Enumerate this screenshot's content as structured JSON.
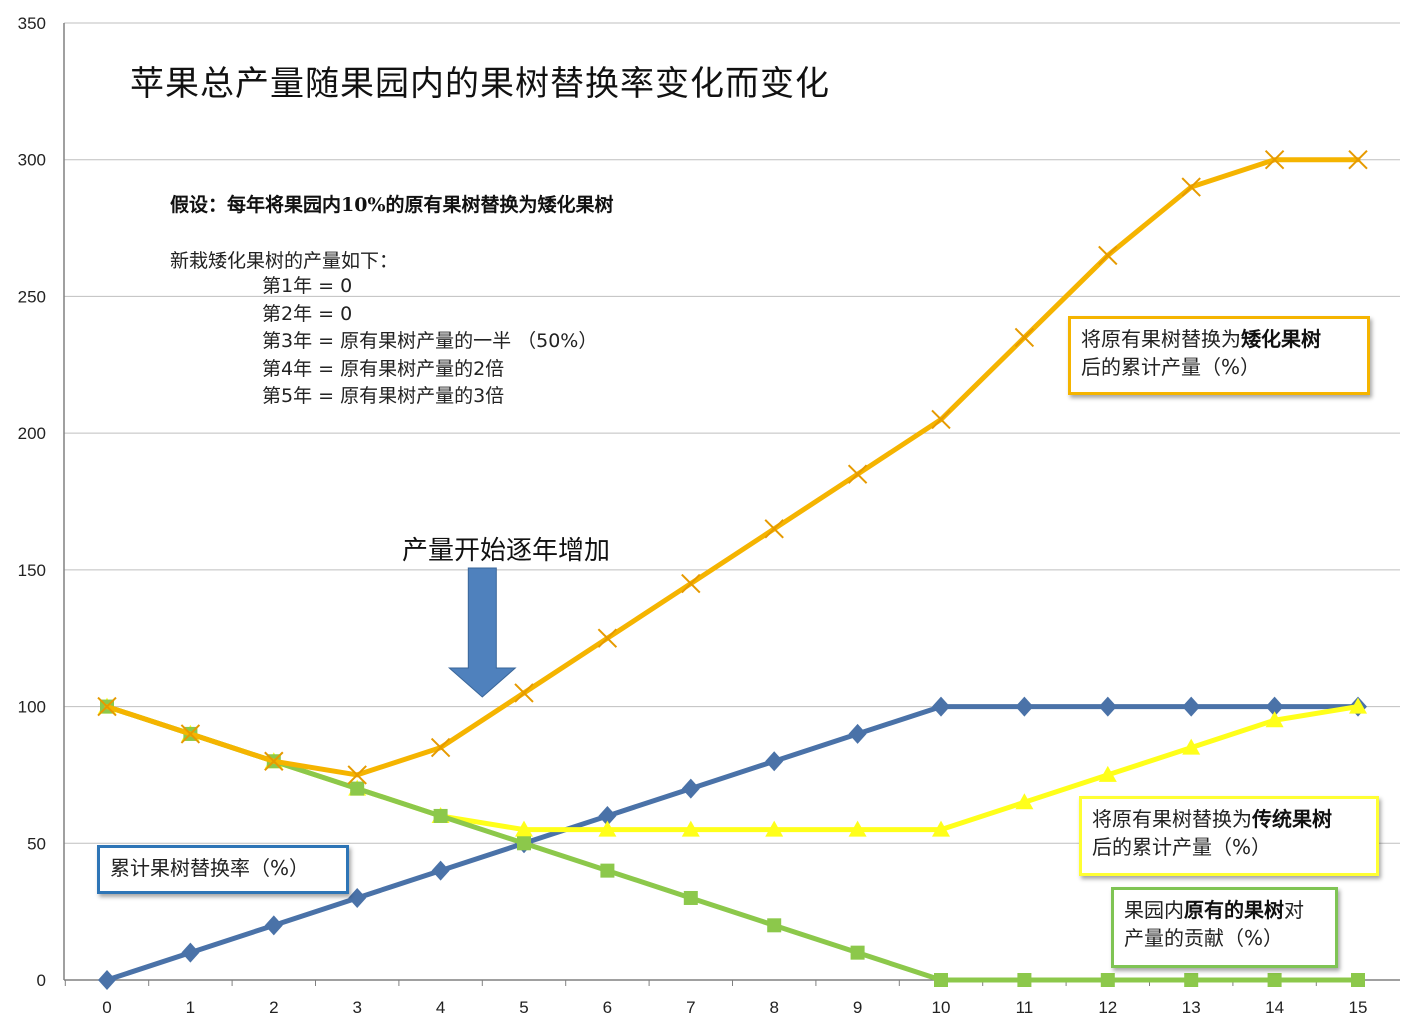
{
  "chart_data": {
    "type": "line",
    "title": "苹果总产量随果园内的果树替换率变化而变化",
    "x": [
      0,
      1,
      2,
      3,
      4,
      5,
      6,
      7,
      8,
      9,
      10,
      11,
      12,
      13,
      14,
      15
    ],
    "ylim": [
      0,
      350
    ],
    "xticks": [
      "0",
      "1",
      "2",
      "3",
      "4",
      "5",
      "6",
      "7",
      "8",
      "9",
      "10",
      "11",
      "12",
      "13",
      "14",
      "15"
    ],
    "yticks": [
      "0",
      "50",
      "100",
      "150",
      "200",
      "250",
      "300",
      "350"
    ],
    "grid": "horizontal",
    "series": [
      {
        "name": "累计果树替换率（%）",
        "color": "#4a72a8",
        "marker": "diamond",
        "values": [
          0,
          10,
          20,
          30,
          40,
          50,
          60,
          70,
          80,
          90,
          100,
          100,
          100,
          100,
          100,
          100
        ]
      },
      {
        "name": "将原有果树替换为传统果树后的累计产量（%）",
        "color": "#ffff1a",
        "marker": "triangle",
        "values": [
          100,
          90,
          80,
          70,
          60,
          55,
          55,
          55,
          55,
          55,
          55,
          65,
          75,
          85,
          95,
          100
        ]
      },
      {
        "name": "果园内原有的果树对产量的贡献（%）",
        "color": "#8cc84b",
        "marker": "square",
        "values": [
          100,
          90,
          80,
          70,
          60,
          50,
          40,
          30,
          20,
          10,
          0,
          0,
          0,
          0,
          0,
          0
        ]
      },
      {
        "name": "将原有果树替换为矮化果树后的累计产量（%）",
        "color": "#f5b400",
        "marker": "x",
        "values": [
          100,
          90,
          80,
          75,
          85,
          105,
          125,
          145,
          165,
          185,
          205,
          235,
          265,
          290,
          300,
          300
        ]
      }
    ],
    "annotations": {
      "assumption_title": "假设：每年将果园内10%的原有果树替换为矮化果树",
      "assumption_intro": "新栽矮化果树的产量如下：",
      "assumption_items": [
        "第1年 = 0",
        "第2年 = 0",
        "第3年 = 原有果树产量的一半 （50%）",
        "第4年 = 原有果树产量的2倍",
        "第5年 = 原有果树产量的3倍"
      ],
      "arrow_label": "产量开始逐年增加",
      "arrow_color": "#4f81bd",
      "arrow_x": 4.5
    },
    "legend": {
      "replace_rate": {
        "text": "累计果树替换率（%）"
      },
      "dwarf": {
        "prefix": "将原有果树替换为",
        "bold": "矮化果树",
        "suffix": "后的累计产量（%）"
      },
      "traditional": {
        "prefix": "将原有果树替换为",
        "bold": "传统果树",
        "suffix": "后的累计产量（%）"
      },
      "original": {
        "prefix": "果园内",
        "bold": "原有的果树",
        "suffix": "对产量的贡献（%）"
      }
    }
  }
}
